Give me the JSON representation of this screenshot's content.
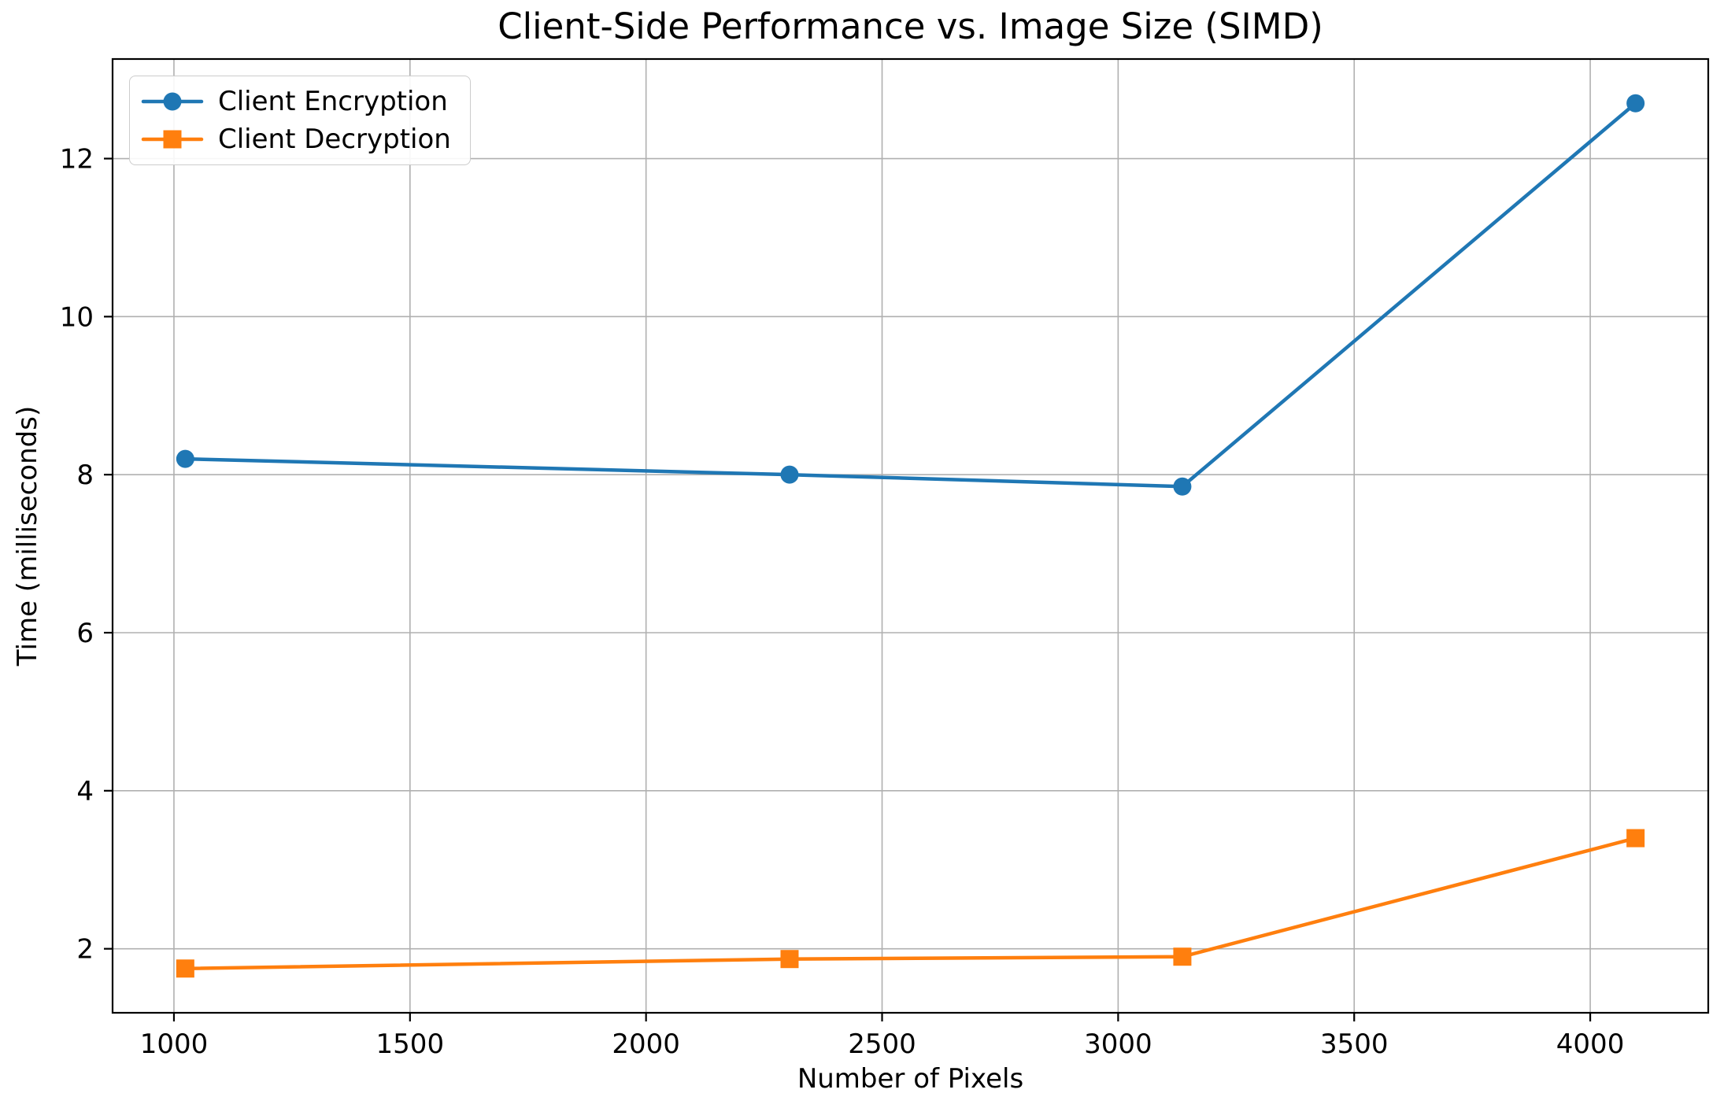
{
  "chart_data": {
    "type": "line",
    "title": "Client-Side Performance vs. Image Size (SIMD)",
    "xlabel": "Number of Pixels",
    "ylabel": "Time (milliseconds)",
    "x": [
      1024,
      2304,
      3136,
      4096
    ],
    "series": [
      {
        "name": "Client Encryption",
        "color": "#1f77b4",
        "marker": "circle",
        "values": [
          8.2,
          8.0,
          7.85,
          12.7
        ]
      },
      {
        "name": "Client Decryption",
        "color": "#ff7f0e",
        "marker": "square",
        "values": [
          1.75,
          1.87,
          1.9,
          3.4
        ]
      }
    ],
    "xticks": [
      1000,
      1500,
      2000,
      2500,
      3000,
      3500,
      4000
    ],
    "yticks": [
      2,
      4,
      6,
      8,
      10,
      12
    ],
    "xlim": [
      870,
      4250
    ],
    "ylim": [
      1.19,
      13.26
    ],
    "grid": true,
    "legend_position": "upper-left",
    "colors": {
      "grid": "#b0b0b0",
      "spine": "#000000",
      "text": "#000000",
      "legend_border": "#cccccc",
      "background": "#ffffff"
    }
  }
}
